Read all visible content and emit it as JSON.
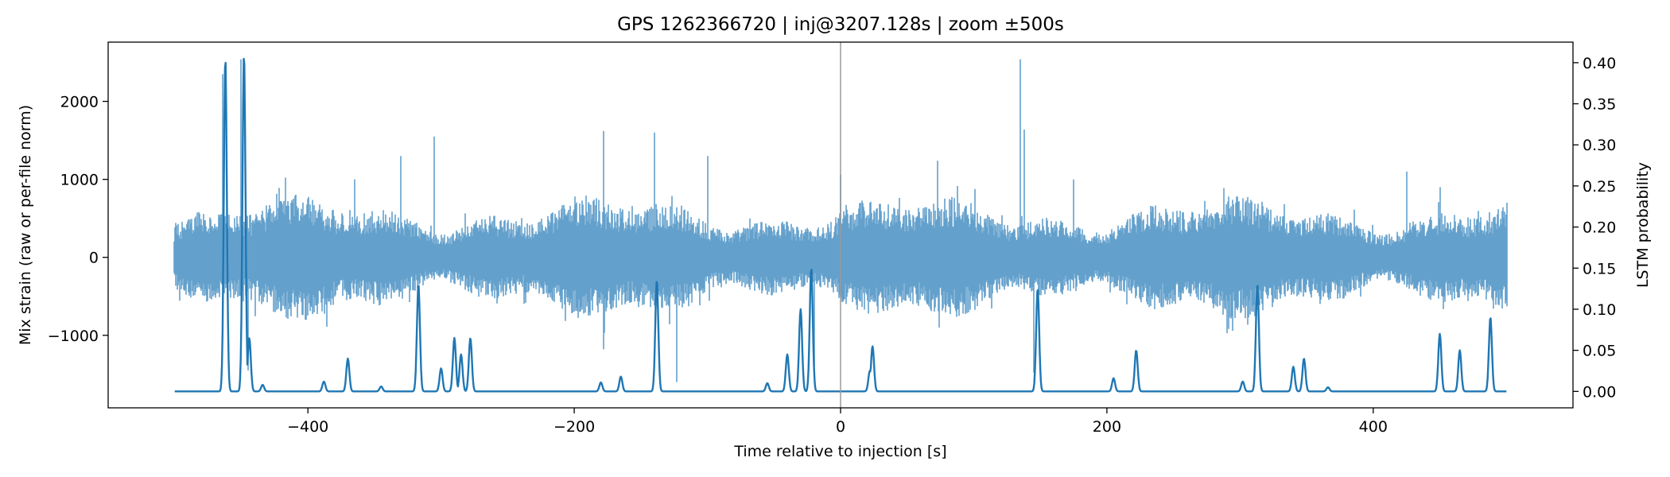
{
  "chart_data": {
    "type": "line",
    "title": "GPS 1262366720 | inj@3207.128s | zoom ±500s",
    "xlabel": "Time relative to injection [s]",
    "ylabel_left": "Mix strain (raw or per-file norm)",
    "ylabel_right": "LSTM probability",
    "xlim": [
      -550,
      550
    ],
    "ylim_left": [
      -1930,
      2760
    ],
    "ylim_right": [
      -0.02,
      0.425
    ],
    "x_ticks": [
      -400,
      -200,
      0,
      200,
      400
    ],
    "x_tick_labels": [
      "−400",
      "−200",
      "0",
      "200",
      "400"
    ],
    "y_left_ticks": [
      -1000,
      0,
      1000,
      2000
    ],
    "y_left_tick_labels": [
      "−1000",
      "0",
      "1000",
      "2000"
    ],
    "y_right_ticks": [
      0.0,
      0.05,
      0.1,
      0.15,
      0.2,
      0.25,
      0.3,
      0.35,
      0.4
    ],
    "y_right_tick_labels": [
      "0.00",
      "0.05",
      "0.10",
      "0.15",
      "0.20",
      "0.25",
      "0.30",
      "0.35",
      "0.40"
    ],
    "injection_marker_x": 0,
    "grid": false,
    "series": [
      {
        "axis": "left",
        "color": "#63a0cc",
        "x_range": [
          -500,
          500
        ],
        "typical_amplitude": 600,
        "glitches": [
          {
            "x": -464,
            "y": 2350
          },
          {
            "x": -450,
            "y": 2540
          },
          {
            "x": -445,
            "y": -1450
          },
          {
            "x": -400,
            "y": 750
          },
          {
            "x": -365,
            "y": 1000
          },
          {
            "x": -330,
            "y": 1300
          },
          {
            "x": -316,
            "y": -330
          },
          {
            "x": -305,
            "y": 1550
          },
          {
            "x": -178,
            "y": 1620
          },
          {
            "x": -178,
            "y": -1180
          },
          {
            "x": -140,
            "y": 1600
          },
          {
            "x": -138,
            "y": -460
          },
          {
            "x": -123,
            "y": -1600
          },
          {
            "x": -100,
            "y": 1300
          },
          {
            "x": -20,
            "y": -1400
          },
          {
            "x": 0,
            "y": 1060
          },
          {
            "x": 73,
            "y": 1240
          },
          {
            "x": 135,
            "y": 2540
          },
          {
            "x": 138,
            "y": 1640
          },
          {
            "x": 145,
            "y": -1480
          },
          {
            "x": 175,
            "y": 1000
          },
          {
            "x": 313,
            "y": 270
          },
          {
            "x": 320,
            "y": -480
          },
          {
            "x": 425,
            "y": 1100
          },
          {
            "x": 450,
            "y": 900
          },
          {
            "x": 490,
            "y": -660
          }
        ]
      },
      {
        "axis": "right",
        "color": "#1f77b4",
        "baseline": 0.0,
        "peaks": [
          {
            "x": -462,
            "y": 0.405
          },
          {
            "x": -448,
            "y": 0.41
          },
          {
            "x": -444,
            "y": 0.065
          },
          {
            "x": -434,
            "y": 0.008
          },
          {
            "x": -388,
            "y": 0.012
          },
          {
            "x": -370,
            "y": 0.04
          },
          {
            "x": -345,
            "y": 0.006
          },
          {
            "x": -317,
            "y": 0.13
          },
          {
            "x": -300,
            "y": 0.028
          },
          {
            "x": -290,
            "y": 0.065
          },
          {
            "x": -285,
            "y": 0.045
          },
          {
            "x": -278,
            "y": 0.065
          },
          {
            "x": -180,
            "y": 0.011
          },
          {
            "x": -165,
            "y": 0.018
          },
          {
            "x": -138,
            "y": 0.135
          },
          {
            "x": -55,
            "y": 0.01
          },
          {
            "x": -40,
            "y": 0.045
          },
          {
            "x": -30,
            "y": 0.1
          },
          {
            "x": -22,
            "y": 0.15
          },
          {
            "x": 22,
            "y": 0.025
          },
          {
            "x": 24,
            "y": 0.055
          },
          {
            "x": 148,
            "y": 0.125
          },
          {
            "x": 205,
            "y": 0.016
          },
          {
            "x": 222,
            "y": 0.05
          },
          {
            "x": 302,
            "y": 0.012
          },
          {
            "x": 313,
            "y": 0.13
          },
          {
            "x": 340,
            "y": 0.03
          },
          {
            "x": 348,
            "y": 0.04
          },
          {
            "x": 366,
            "y": 0.005
          },
          {
            "x": 450,
            "y": 0.07
          },
          {
            "x": 465,
            "y": 0.05
          },
          {
            "x": 488,
            "y": 0.09
          }
        ]
      }
    ]
  }
}
